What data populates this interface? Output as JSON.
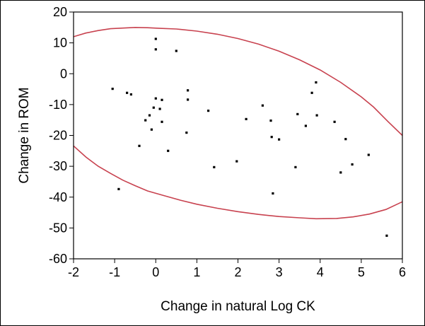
{
  "chart_data": {
    "type": "scatter",
    "title": "",
    "xlabel": "Change in natural Log CK",
    "ylabel": "Change in ROM",
    "xlim": [
      -2,
      6
    ],
    "ylim": [
      -60,
      20
    ],
    "xticks": [
      -2,
      -1,
      0,
      1,
      2,
      3,
      4,
      5,
      6
    ],
    "yticks": [
      20,
      10,
      0,
      -10,
      -20,
      -30,
      -40,
      -50,
      -60
    ],
    "grid": false,
    "colors": {
      "ellipse": "#c8424f",
      "points": "#000000"
    },
    "points": [
      [
        0.0,
        11.3
      ],
      [
        0.0,
        7.9
      ],
      [
        0.5,
        7.4
      ],
      [
        -1.05,
        -4.9
      ],
      [
        -0.7,
        -6.2
      ],
      [
        -0.6,
        -6.7
      ],
      [
        -0.25,
        -15.1
      ],
      [
        -0.15,
        -13.5
      ],
      [
        -0.1,
        -18.1
      ],
      [
        -0.05,
        -11.0
      ],
      [
        0.0,
        -8.0
      ],
      [
        0.1,
        -11.4
      ],
      [
        0.15,
        -8.5
      ],
      [
        0.15,
        -15.6
      ],
      [
        -0.4,
        -23.4
      ],
      [
        0.3,
        -25.0
      ],
      [
        0.78,
        -5.4
      ],
      [
        0.78,
        -8.4
      ],
      [
        0.75,
        -19.1
      ],
      [
        1.28,
        -12.0
      ],
      [
        1.42,
        -30.3
      ],
      [
        -0.9,
        -37.4
      ],
      [
        1.97,
        -28.4
      ],
      [
        2.2,
        -14.7
      ],
      [
        2.6,
        -10.3
      ],
      [
        2.8,
        -15.2
      ],
      [
        2.82,
        -20.5
      ],
      [
        3.0,
        -21.3
      ],
      [
        2.85,
        -38.8
      ],
      [
        3.4,
        -30.3
      ],
      [
        3.45,
        -13.1
      ],
      [
        3.65,
        -16.9
      ],
      [
        3.8,
        -6.2
      ],
      [
        3.9,
        -2.8
      ],
      [
        3.92,
        -13.5
      ],
      [
        4.35,
        -15.6
      ],
      [
        4.5,
        -32.0
      ],
      [
        4.62,
        -21.2
      ],
      [
        4.78,
        -29.4
      ],
      [
        5.18,
        -26.3
      ],
      [
        5.62,
        -52.5
      ]
    ],
    "ellipse_upper": [
      [
        -2.0,
        12.0
      ],
      [
        -1.7,
        13.2
      ],
      [
        -1.4,
        14.0
      ],
      [
        -1.1,
        14.6
      ],
      [
        -0.8,
        14.8
      ],
      [
        -0.5,
        15.0
      ],
      [
        -0.2,
        14.9
      ],
      [
        0.1,
        14.7
      ],
      [
        0.5,
        14.5
      ],
      [
        1.0,
        13.8
      ],
      [
        1.5,
        12.8
      ],
      [
        2.0,
        11.4
      ],
      [
        2.5,
        9.6
      ],
      [
        3.0,
        7.3
      ],
      [
        3.5,
        4.5
      ],
      [
        4.0,
        1.2
      ],
      [
        4.5,
        -2.8
      ],
      [
        5.0,
        -7.5
      ],
      [
        5.3,
        -10.8
      ],
      [
        5.65,
        -15.5
      ],
      [
        6.0,
        -20.0
      ]
    ],
    "ellipse_lower": [
      [
        -2.0,
        -23.4
      ],
      [
        -1.7,
        -27.0
      ],
      [
        -1.4,
        -30.0
      ],
      [
        -1.1,
        -32.3
      ],
      [
        -0.8,
        -34.5
      ],
      [
        -0.5,
        -36.3
      ],
      [
        -0.2,
        -38.0
      ],
      [
        0.2,
        -39.5
      ],
      [
        0.6,
        -41.0
      ],
      [
        1.0,
        -42.3
      ],
      [
        1.5,
        -43.6
      ],
      [
        2.0,
        -44.7
      ],
      [
        2.5,
        -45.6
      ],
      [
        3.0,
        -46.3
      ],
      [
        3.5,
        -46.7
      ],
      [
        3.9,
        -47.0
      ],
      [
        4.4,
        -46.9
      ],
      [
        4.8,
        -46.4
      ],
      [
        5.2,
        -45.5
      ],
      [
        5.6,
        -44.0
      ],
      [
        6.0,
        -41.5
      ]
    ]
  }
}
